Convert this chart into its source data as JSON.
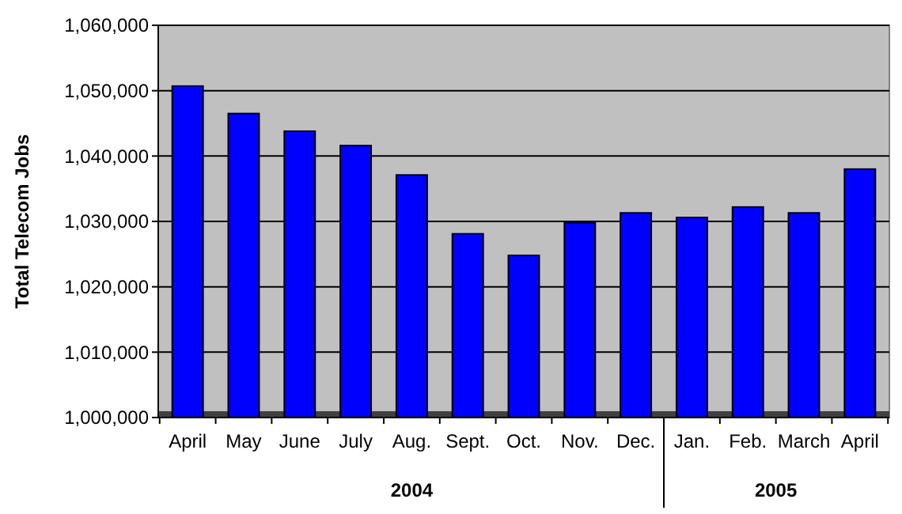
{
  "chart_data": {
    "type": "bar",
    "ylabel": "Total Telecom Jobs",
    "categories": [
      "April",
      "May",
      "June",
      "July",
      "Aug.",
      "Sept.",
      "Oct.",
      "Nov.",
      "Dec.",
      "Jan.",
      "Feb.",
      "March",
      "April"
    ],
    "values": [
      1050700,
      1046500,
      1043800,
      1041600,
      1037100,
      1028100,
      1024800,
      1029800,
      1031300,
      1030600,
      1032200,
      1031300,
      1038000
    ],
    "color": "#0000ff",
    "ylim": [
      1000000,
      1060000
    ],
    "yticks": [
      {
        "value": 1000000,
        "label": "1,000,000"
      },
      {
        "value": 1010000,
        "label": "1,010,000"
      },
      {
        "value": 1020000,
        "label": "1,020,000"
      },
      {
        "value": 1030000,
        "label": "1,030,000"
      },
      {
        "value": 1040000,
        "label": "1,040,000"
      },
      {
        "value": 1050000,
        "label": "1,050,000"
      },
      {
        "value": 1060000,
        "label": "1,060,000"
      }
    ],
    "grid": "y",
    "annotations": [
      "2004",
      "2005"
    ]
  }
}
